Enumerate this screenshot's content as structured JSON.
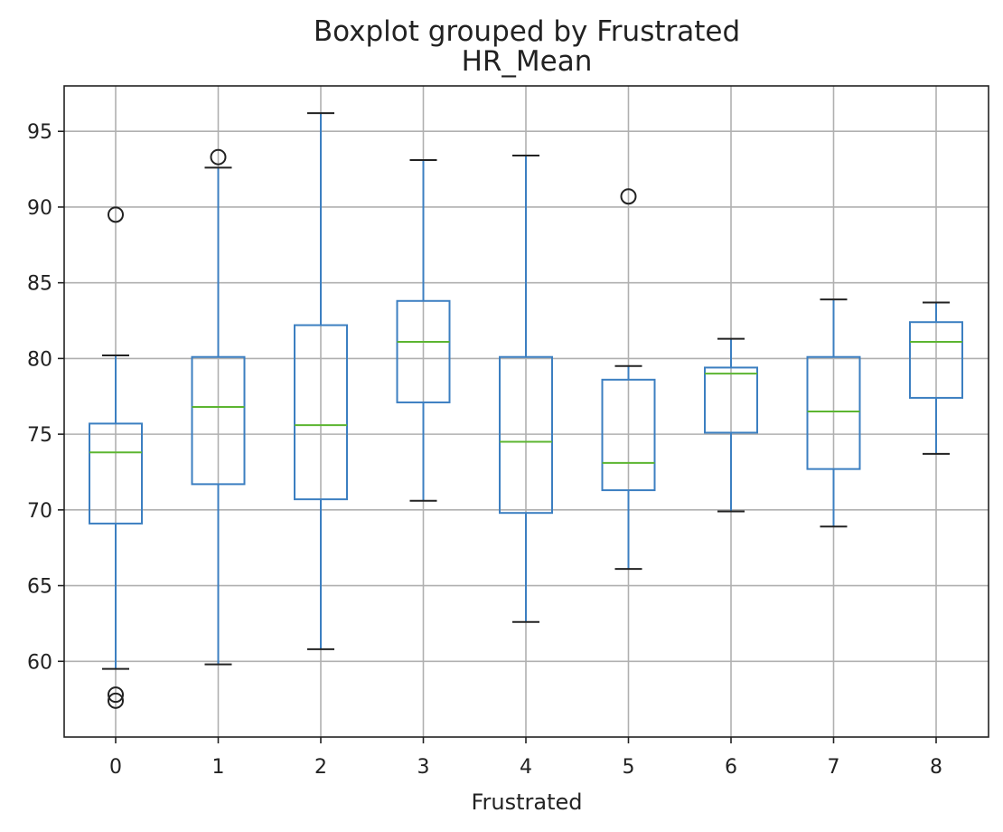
{
  "chart_data": {
    "type": "box",
    "suptitle": "Boxplot grouped by Frustrated",
    "title": "HR_Mean",
    "xlabel": "Frustrated",
    "ylabel": "",
    "ylim": [
      55.0,
      98.0
    ],
    "yticks": [
      60,
      65,
      70,
      75,
      80,
      85,
      90,
      95
    ],
    "grid": true,
    "categories": [
      "0",
      "1",
      "2",
      "3",
      "4",
      "5",
      "6",
      "7",
      "8"
    ],
    "boxes": [
      {
        "category": "0",
        "whisker_low": 59.5,
        "q1": 69.1,
        "median": 73.8,
        "q3": 75.7,
        "whisker_high": 80.2,
        "outliers": [
          89.5,
          57.8,
          57.4
        ]
      },
      {
        "category": "1",
        "whisker_low": 59.8,
        "q1": 71.7,
        "median": 76.8,
        "q3": 80.1,
        "whisker_high": 92.6,
        "outliers": [
          93.3
        ]
      },
      {
        "category": "2",
        "whisker_low": 60.8,
        "q1": 70.7,
        "median": 75.6,
        "q3": 82.2,
        "whisker_high": 96.2,
        "outliers": []
      },
      {
        "category": "3",
        "whisker_low": 70.6,
        "q1": 77.1,
        "median": 81.1,
        "q3": 83.8,
        "whisker_high": 93.1,
        "outliers": []
      },
      {
        "category": "4",
        "whisker_low": 62.6,
        "q1": 69.8,
        "median": 74.5,
        "q3": 80.1,
        "whisker_high": 93.4,
        "outliers": []
      },
      {
        "category": "5",
        "whisker_low": 66.1,
        "q1": 71.3,
        "median": 73.1,
        "q3": 78.6,
        "whisker_high": 79.5,
        "outliers": [
          90.7
        ]
      },
      {
        "category": "6",
        "whisker_low": 69.9,
        "q1": 75.1,
        "median": 79.0,
        "q3": 79.4,
        "whisker_high": 81.3,
        "outliers": []
      },
      {
        "category": "7",
        "whisker_low": 68.9,
        "q1": 72.7,
        "median": 76.5,
        "q3": 80.1,
        "whisker_high": 83.9,
        "outliers": []
      },
      {
        "category": "8",
        "whisker_low": 73.7,
        "q1": 77.4,
        "median": 81.1,
        "q3": 82.4,
        "whisker_high": 83.7,
        "outliers": []
      }
    ],
    "colors": {
      "box": "#3c7fc1",
      "median": "#5cb531",
      "whisker": "#3c7fc1",
      "cap": "#222222",
      "outlier": "#222222",
      "grid": "#b0b0b0",
      "axis": "#222222"
    }
  }
}
